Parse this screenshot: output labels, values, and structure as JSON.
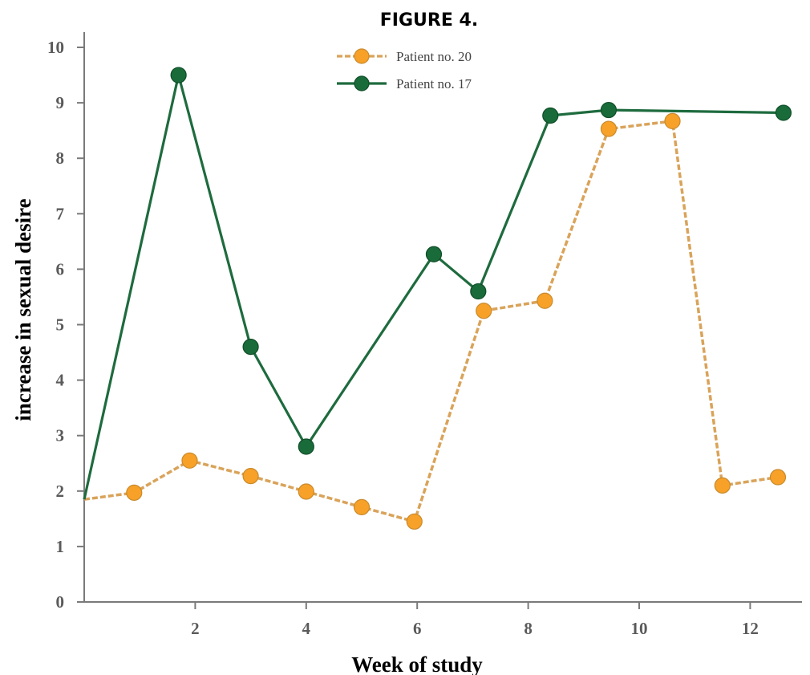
{
  "chart_data": {
    "type": "line",
    "title": "FIGURE 4.",
    "xlabel": "Week of study",
    "ylabel": "increase in sexual desire",
    "xlim": [
      0,
      12.9
    ],
    "ylim": [
      0,
      10
    ],
    "x_ticks": [
      2,
      4,
      6,
      8,
      10,
      12
    ],
    "y_ticks": [
      0,
      1,
      2,
      3,
      4,
      5,
      6,
      7,
      8,
      9,
      10
    ],
    "grid": false,
    "legend_position": "top-center",
    "series": [
      {
        "name": "Patient no. 20",
        "color": "#F7A128",
        "line_color": "#D9A35A",
        "line_style": "dashed",
        "x": [
          0.0,
          0.9,
          1.9,
          3.0,
          4.0,
          5.0,
          5.95,
          7.2,
          8.3,
          9.45,
          10.6,
          11.5,
          12.5
        ],
        "y": [
          1.85,
          1.97,
          2.55,
          2.27,
          1.99,
          1.71,
          1.45,
          5.25,
          5.43,
          8.53,
          8.67,
          2.1,
          2.25
        ]
      },
      {
        "name": "Patient no. 17",
        "color": "#1A6B3A",
        "line_color": "#1E6B3E",
        "line_style": "solid",
        "x": [
          0.0,
          1.7,
          3.0,
          4.0,
          6.3,
          7.1,
          8.4,
          9.45,
          12.6
        ],
        "y": [
          1.85,
          9.5,
          4.6,
          2.8,
          6.27,
          5.6,
          8.77,
          8.87,
          8.82
        ]
      }
    ]
  }
}
